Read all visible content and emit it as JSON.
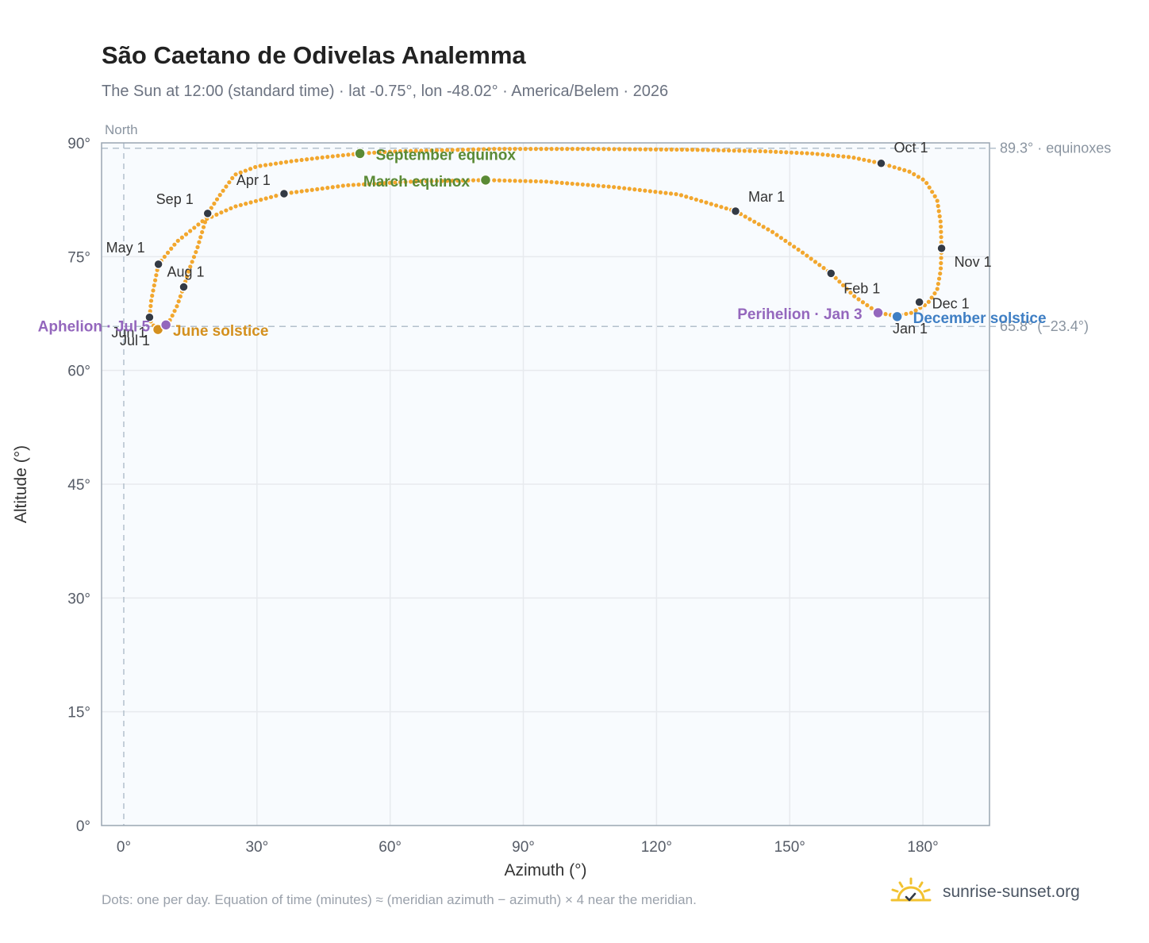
{
  "title": "São Caetano de Odivelas Analemma",
  "subtitle": "The Sun at 12:00 (standard time) · lat -0.75°, lon -48.02° · America/Belem · 2026",
  "footnote": "Dots: one per day. Equation of time (minutes) ≈ (meridian azimuth − azimuth) × 4 near the meridian.",
  "brand": {
    "name": "sunrise-sunset.org",
    "icon": "sun-check-icon"
  },
  "colors": {
    "curve": "#f2a72e",
    "month_marker": "#333a45",
    "equinox": "#5a8a35",
    "june_solstice": "#d4901e",
    "december_solstice": "#3f7fc4",
    "apsis": "#9467bd",
    "grid": "#e7eaee",
    "plot_bg": "#f8fbfe",
    "axis_text": "#555b66"
  },
  "chart_data": {
    "type": "scatter",
    "title": "São Caetano de Odivelas Analemma",
    "xlabel": "Azimuth (°)",
    "ylabel": "Altitude (°)",
    "xlim": [
      -5,
      195
    ],
    "ylim": [
      0,
      90
    ],
    "x_ticks": [
      {
        "value": 0,
        "label": "0°"
      },
      {
        "value": 30,
        "label": "30°"
      },
      {
        "value": 60,
        "label": "60°"
      },
      {
        "value": 90,
        "label": "90°"
      },
      {
        "value": 120,
        "label": "120°"
      },
      {
        "value": 150,
        "label": "150°"
      },
      {
        "value": 180,
        "label": "180°"
      }
    ],
    "y_ticks": [
      {
        "value": 0,
        "label": "0°"
      },
      {
        "value": 15,
        "label": "15°"
      },
      {
        "value": 30,
        "label": "30°"
      },
      {
        "value": 45,
        "label": "45°"
      },
      {
        "value": 60,
        "label": "60°"
      },
      {
        "value": 75,
        "label": "75°"
      },
      {
        "value": 90,
        "label": "90°"
      }
    ],
    "grid": true,
    "north_line": {
      "azimuth": 0,
      "label": "North"
    },
    "reference_lines": [
      {
        "altitude": 89.3,
        "label": "89.3° · equinoxes"
      },
      {
        "altitude": 65.8,
        "label": "65.8° (−23.4°)"
      }
    ],
    "analemma_path": [
      [
        173.9,
        67.2
      ],
      [
        177.5,
        67.6
      ],
      [
        181.0,
        68.8
      ],
      [
        183.2,
        70.6
      ],
      [
        184.0,
        73.2
      ],
      [
        184.2,
        76.1
      ],
      [
        184.0,
        79.5
      ],
      [
        183.2,
        82.5
      ],
      [
        180.5,
        85.0
      ],
      [
        177.0,
        86.2
      ],
      [
        170.6,
        87.3
      ],
      [
        164.0,
        88.1
      ],
      [
        155.0,
        88.6
      ],
      [
        144.0,
        88.9
      ],
      [
        128.0,
        89.1
      ],
      [
        106.0,
        89.2
      ],
      [
        83.5,
        89.2
      ],
      [
        62.0,
        88.9
      ],
      [
        53.2,
        88.6
      ],
      [
        45.0,
        88.1
      ],
      [
        38.0,
        87.6
      ],
      [
        30.0,
        86.9
      ],
      [
        25.0,
        85.8
      ],
      [
        21.5,
        83.0
      ],
      [
        18.9,
        80.7
      ],
      [
        16.5,
        76.0
      ],
      [
        14.6,
        73.1
      ],
      [
        13.5,
        71.0
      ],
      [
        12.0,
        68.5
      ],
      [
        10.5,
        66.7
      ],
      [
        9.5,
        66.0
      ],
      [
        8.8,
        65.6
      ],
      [
        7.7,
        65.5
      ],
      [
        6.3,
        66.1
      ],
      [
        5.8,
        67.0
      ],
      [
        6.2,
        69.3
      ],
      [
        7.8,
        74.0
      ],
      [
        12.0,
        77.0
      ],
      [
        18.0,
        79.8
      ],
      [
        25.0,
        81.6
      ],
      [
        36.1,
        83.3
      ],
      [
        50.0,
        84.4
      ],
      [
        65.0,
        84.9
      ],
      [
        81.5,
        85.1
      ],
      [
        95.0,
        84.9
      ],
      [
        110.0,
        84.2
      ],
      [
        125.0,
        83.2
      ],
      [
        137.8,
        81.0
      ],
      [
        146.0,
        78.3
      ],
      [
        153.0,
        75.5
      ],
      [
        159.3,
        72.8
      ],
      [
        164.5,
        69.8
      ],
      [
        169.9,
        67.6
      ],
      [
        173.9,
        67.2
      ]
    ],
    "month_markers": [
      {
        "label": "Jan 1",
        "azimuth": 173.9,
        "altitude": 67.2
      },
      {
        "label": "Feb 1",
        "azimuth": 159.3,
        "altitude": 72.8
      },
      {
        "label": "Mar 1",
        "azimuth": 137.8,
        "altitude": 81.0
      },
      {
        "label": "Apr 1",
        "azimuth": 36.1,
        "altitude": 83.3
      },
      {
        "label": "May 1",
        "azimuth": 7.8,
        "altitude": 74.0
      },
      {
        "label": "Jun 1",
        "azimuth": 5.8,
        "altitude": 67.0
      },
      {
        "label": "Jul 1",
        "azimuth": 7.7,
        "altitude": 65.5
      },
      {
        "label": "Aug 1",
        "azimuth": 13.5,
        "altitude": 71.0
      },
      {
        "label": "Sep 1",
        "azimuth": 18.9,
        "altitude": 80.7
      },
      {
        "label": "Oct 1",
        "azimuth": 170.6,
        "altitude": 87.3
      },
      {
        "label": "Nov 1",
        "azimuth": 184.2,
        "altitude": 76.1
      },
      {
        "label": "Dec 1",
        "azimuth": 179.2,
        "altitude": 69.0
      }
    ],
    "events": [
      {
        "label": "March equinox",
        "azimuth": 81.5,
        "altitude": 85.1,
        "color_key": "equinox"
      },
      {
        "label": "September equinox",
        "azimuth": 53.2,
        "altitude": 88.6,
        "color_key": "equinox"
      },
      {
        "label": "June solstice",
        "azimuth": 7.7,
        "altitude": 65.4,
        "color_key": "june_solstice"
      },
      {
        "label": "December solstice",
        "azimuth": 174.2,
        "altitude": 67.1,
        "color_key": "december_solstice"
      },
      {
        "label": "Perihelion · Jan 3",
        "azimuth": 169.9,
        "altitude": 67.6,
        "color_key": "apsis"
      },
      {
        "label": "Aphelion · Jul 5",
        "azimuth": 9.5,
        "altitude": 66.0,
        "color_key": "apsis"
      }
    ]
  }
}
